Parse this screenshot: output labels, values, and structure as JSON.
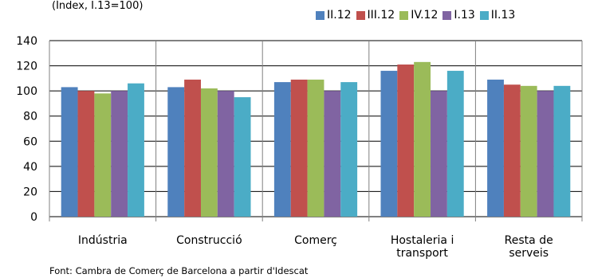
{
  "chart_data": {
    "type": "bar",
    "subtitle": "(Índex, I.13=100)",
    "categories": [
      "Indústria",
      "Construcció",
      "Comerç",
      "Hostaleria i transport",
      "Resta de serveis"
    ],
    "series": [
      {
        "name": "II.12",
        "color": "#4f81bd",
        "values": [
          103,
          103,
          107,
          116,
          109
        ]
      },
      {
        "name": "III.12",
        "color": "#c0504d",
        "values": [
          100,
          109,
          109,
          121,
          105
        ]
      },
      {
        "name": "IV.12",
        "color": "#9bbb59",
        "values": [
          98,
          102,
          109,
          123,
          104
        ]
      },
      {
        "name": "I.13",
        "color": "#8064a2",
        "values": [
          100,
          100,
          100,
          100,
          100
        ]
      },
      {
        "name": "II.13",
        "color": "#4bacc6",
        "values": [
          106,
          95,
          107,
          116,
          104
        ]
      }
    ],
    "ylim": [
      0,
      140
    ],
    "yticks": [
      0,
      20,
      40,
      60,
      80,
      100,
      120,
      140
    ],
    "grid": true,
    "legend_position": "top-right",
    "source": "Font: Cambra de Comerç de Barcelona a partir d'Idescat"
  }
}
